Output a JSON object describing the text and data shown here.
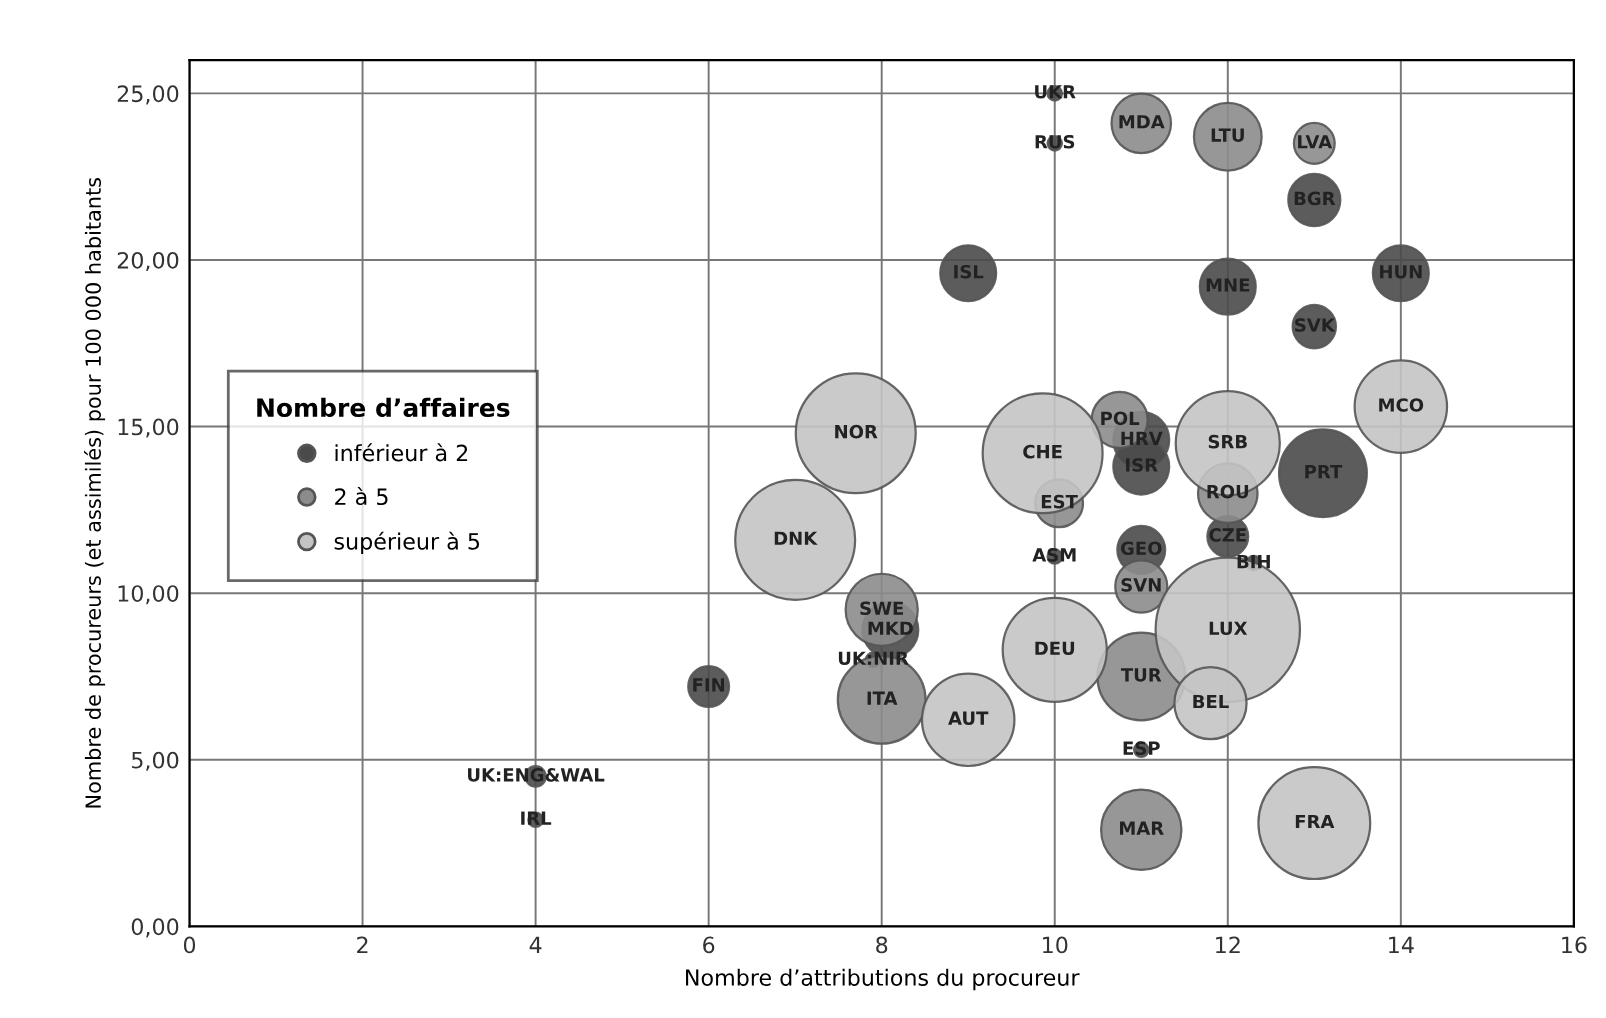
{
  "chart_data": {
    "type": "bubble",
    "xlabel": "Nombre d’attributions du procureur",
    "ylabel": "Nombre de procureurs (et assimilés) pour 100 000 habitants",
    "legend_title": "Nombre d’affaires",
    "xlim": [
      0,
      16
    ],
    "ylim": [
      0,
      26
    ],
    "xticks": [
      0,
      2,
      4,
      6,
      8,
      10,
      12,
      14,
      16
    ],
    "yticks": [
      {
        "value": 0,
        "label": "0,00"
      },
      {
        "value": 5,
        "label": "5,00"
      },
      {
        "value": 10,
        "label": "10,00"
      },
      {
        "value": 15,
        "label": "15,00"
      },
      {
        "value": 20,
        "label": "20,00"
      },
      {
        "value": 25,
        "label": "25,00"
      }
    ],
    "grid": true,
    "legend": "left",
    "series": [
      {
        "name": "inférieur à 2",
        "color": "#4a4a4a",
        "x": [
          10,
          10,
          13,
          9,
          12,
          14,
          13,
          6,
          4,
          11,
          11,
          8.1,
          11,
          12,
          13.1,
          10,
          12.3,
          11,
          7.9,
          4
        ],
        "values": [
          25,
          23.5,
          21.8,
          19.6,
          19.2,
          19.6,
          18,
          7.2,
          4.5,
          14.6,
          13.8,
          8.9,
          11.3,
          11.7,
          13.6,
          11.1,
          10.9,
          5.3,
          8,
          3.2
        ],
        "sizes": [
          0.01,
          0.01,
          0.13,
          0.15,
          0.15,
          0.15,
          0.09,
          0.08,
          0.02,
          0.15,
          0.15,
          0.15,
          0.11,
          0.08,
          0.37,
          0.01,
          0.01,
          0.01,
          0.01,
          0.01
        ]
      },
      {
        "name": "2 à 5",
        "color": "#8c8c8c",
        "x": [
          11,
          12,
          13,
          10.75,
          12,
          11,
          10.05,
          8,
          8,
          11,
          11
        ],
        "values": [
          24.1,
          23.7,
          23.5,
          15.2,
          13,
          10.2,
          12.7,
          9.5,
          6.8,
          2.9,
          7.5
        ],
        "sizes": [
          0.17,
          0.22,
          0.08,
          0.15,
          0.17,
          0.13,
          0.11,
          0.25,
          0.37,
          0.31,
          0.37
        ]
      },
      {
        "name": "supérieur à 5",
        "color": "#c4c4c4",
        "x": [
          7.7,
          9.86,
          7,
          10,
          12,
          13,
          9,
          11.8,
          12,
          14
        ],
        "values": [
          14.8,
          14.2,
          11.6,
          8.3,
          8.9,
          3.1,
          6.2,
          6.7,
          14.5,
          15.6
        ],
        "sizes": [
          0.69,
          0.69,
          0.69,
          0.52,
          1,
          0.6,
          0.41,
          0.25,
          0.52,
          0.41
        ]
      }
    ],
    "annotations": [
      {
        "text": "UKR",
        "x": 10,
        "y": 25
      },
      {
        "text": "RUS",
        "x": 10,
        "y": 23.5
      },
      {
        "text": "BGR",
        "x": 13,
        "y": 21.8
      },
      {
        "text": "ISL",
        "x": 9,
        "y": 19.6
      },
      {
        "text": "MNE",
        "x": 12,
        "y": 19.2
      },
      {
        "text": "HUN",
        "x": 14,
        "y": 19.6
      },
      {
        "text": "SVK",
        "x": 13,
        "y": 18
      },
      {
        "text": "FIN",
        "x": 6,
        "y": 7.2
      },
      {
        "text": "UK:ENG&WAL",
        "x": 4,
        "y": 4.5
      },
      {
        "text": "HRV",
        "x": 11,
        "y": 14.6
      },
      {
        "text": "ISR",
        "x": 11,
        "y": 13.8
      },
      {
        "text": "MKD",
        "x": 8.1,
        "y": 8.9
      },
      {
        "text": "GEO",
        "x": 11,
        "y": 11.3
      },
      {
        "text": "CZE",
        "x": 12,
        "y": 11.7
      },
      {
        "text": "PRT",
        "x": 13.1,
        "y": 13.6
      },
      {
        "text": "ASM",
        "x": 10,
        "y": 11.1
      },
      {
        "text": "BIH",
        "x": 12.3,
        "y": 10.9
      },
      {
        "text": "ESP",
        "x": 11,
        "y": 5.3
      },
      {
        "text": "UK:NIR",
        "x": 7.9,
        "y": 8
      },
      {
        "text": "IRL",
        "x": 4,
        "y": 3.2
      },
      {
        "text": "MDA",
        "x": 11,
        "y": 24.1
      },
      {
        "text": "LTU",
        "x": 12,
        "y": 23.7
      },
      {
        "text": "LVA",
        "x": 13,
        "y": 23.5
      },
      {
        "text": "POL",
        "x": 10.75,
        "y": 15.2
      },
      {
        "text": "ROU",
        "x": 12,
        "y": 13
      },
      {
        "text": "SVN",
        "x": 11,
        "y": 10.2
      },
      {
        "text": "EST",
        "x": 10.05,
        "y": 12.7
      },
      {
        "text": "SWE",
        "x": 8,
        "y": 9.5
      },
      {
        "text": "ITA",
        "x": 8,
        "y": 6.8
      },
      {
        "text": "MAR",
        "x": 11,
        "y": 2.9
      },
      {
        "text": "TUR",
        "x": 11,
        "y": 7.5
      },
      {
        "text": "NOR",
        "x": 7.7,
        "y": 14.8
      },
      {
        "text": "CHE",
        "x": 9.86,
        "y": 14.2
      },
      {
        "text": "DNK",
        "x": 7,
        "y": 11.6
      },
      {
        "text": "DEU",
        "x": 10,
        "y": 8.3
      },
      {
        "text": "LUX",
        "x": 12,
        "y": 8.9
      },
      {
        "text": "FRA",
        "x": 13,
        "y": 3.1
      },
      {
        "text": "AUT",
        "x": 9,
        "y": 6.2
      },
      {
        "text": "BEL",
        "x": 11.8,
        "y": 6.7
      },
      {
        "text": "SRB",
        "x": 12,
        "y": 14.5
      },
      {
        "text": "MCO",
        "x": 14,
        "y": 15.6
      }
    ]
  }
}
